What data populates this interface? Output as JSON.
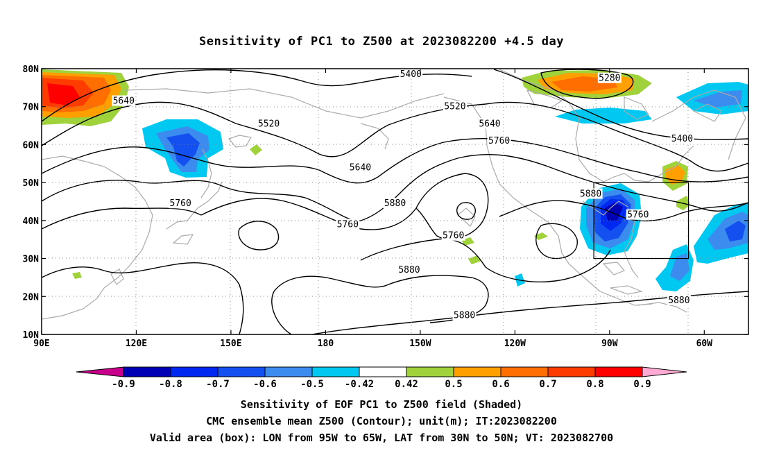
{
  "title": "Sensitivity of PC1 to Z500 at 2023082200 +4.5 day",
  "map": {
    "lat_labels": [
      "80N",
      "70N",
      "60N",
      "50N",
      "40N",
      "30N",
      "20N",
      "10N"
    ],
    "lon_labels": [
      "90E",
      "120E",
      "150E",
      "180",
      "150W",
      "120W",
      "90W",
      "60W"
    ],
    "contour_labels": [
      {
        "text": "5400",
        "lon": -153,
        "lat": 78.5
      },
      {
        "text": "5280",
        "lon": -90,
        "lat": 77.5
      },
      {
        "text": "5640",
        "lon": 116,
        "lat": 71.5
      },
      {
        "text": "5520",
        "lon": -139,
        "lat": 70
      },
      {
        "text": "5640",
        "lon": -128,
        "lat": 65.5
      },
      {
        "text": "5520",
        "lon": 162,
        "lat": 65.5
      },
      {
        "text": "5760",
        "lon": -125,
        "lat": 61
      },
      {
        "text": "5400",
        "lon": -67,
        "lat": 61.5
      },
      {
        "text": "5640",
        "lon": -169,
        "lat": 54
      },
      {
        "text": "5760",
        "lon": 134,
        "lat": 44.5
      },
      {
        "text": "5880",
        "lon": -158,
        "lat": 44.5
      },
      {
        "text": "5880",
        "lon": -96,
        "lat": 47
      },
      {
        "text": "5760",
        "lon": -81,
        "lat": 41.5
      },
      {
        "text": "5760",
        "lon": -173,
        "lat": 39
      },
      {
        "text": "5760",
        "lon": -139.5,
        "lat": 36
      },
      {
        "text": "5880",
        "lon": -153.5,
        "lat": 27
      },
      {
        "text": "5880",
        "lon": -68,
        "lat": 19
      },
      {
        "text": "5880",
        "lon": -136,
        "lat": 15
      }
    ],
    "valid_box": {
      "lon_min": -95,
      "lon_max": -65,
      "lat_min": 30,
      "lat_max": 50
    }
  },
  "colorbar": {
    "labels": [
      "-0.9",
      "-0.8",
      "-0.7",
      "-0.6",
      "-0.5",
      "-0.42",
      "0.42",
      "0.5",
      "0.6",
      "0.7",
      "0.8",
      "0.9"
    ],
    "colors": [
      "#0000b4",
      "#0028f0",
      "#1450f0",
      "#3c8cf0",
      "#00c8f0",
      "#ffffff",
      "#a0d23c",
      "#ffa000",
      "#ff6e00",
      "#ff3c00",
      "#ff0000"
    ],
    "low_end_color": "#c8008c",
    "high_end_color": "#ffaad2"
  },
  "footer": {
    "line1": "Sensitivity of EOF PC1 to Z500 field (Shaded)",
    "line2": "CMC ensemble mean Z500 (Contour); unit(m); IT:2023082200",
    "line3": "Valid area (box): LON from 95W to 65W, LAT from 30N to 50N; VT: 2023082700"
  }
}
